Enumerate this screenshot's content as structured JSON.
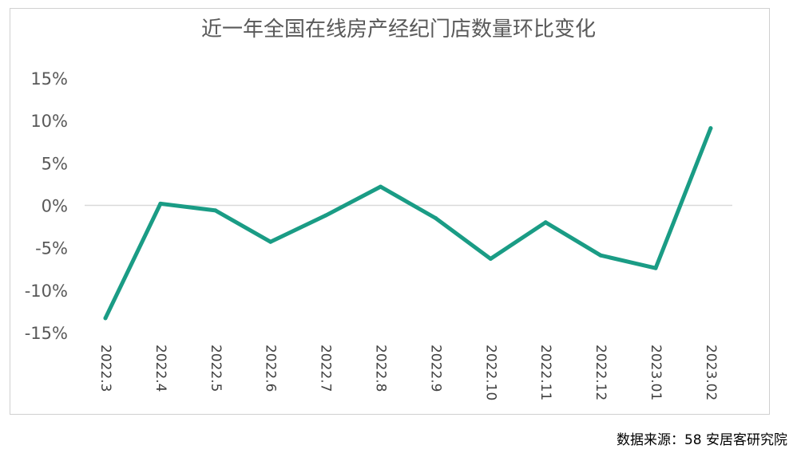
{
  "chart_data": {
    "type": "line",
    "title": "近一年全国在线房产经纪门店数量环比变化",
    "categories": [
      "2022.3",
      "2022.4",
      "2022.5",
      "2022.6",
      "2022.7",
      "2022.8",
      "2022.9",
      "2022.10",
      "2022.11",
      "2022.12",
      "2023.01",
      "2023.02"
    ],
    "series": [
      {
        "values": [
          -13.3,
          0.2,
          -0.6,
          -4.3,
          -1.2,
          2.2,
          -1.5,
          -6.3,
          -2.0,
          -5.9,
          -7.4,
          9.1
        ]
      }
    ],
    "ylim": [
      -15,
      15
    ],
    "y_ticks": [
      15,
      10,
      5,
      0,
      -5,
      -10,
      -15
    ],
    "y_tick_labels": [
      "15%",
      "10%",
      "5%",
      "0%",
      "-5%",
      "-10%",
      "-15%"
    ],
    "line_color": "#1a9c85",
    "zero_line": true,
    "grid": false,
    "legend": "none"
  },
  "source": "数据来源：58 安居客研究院"
}
